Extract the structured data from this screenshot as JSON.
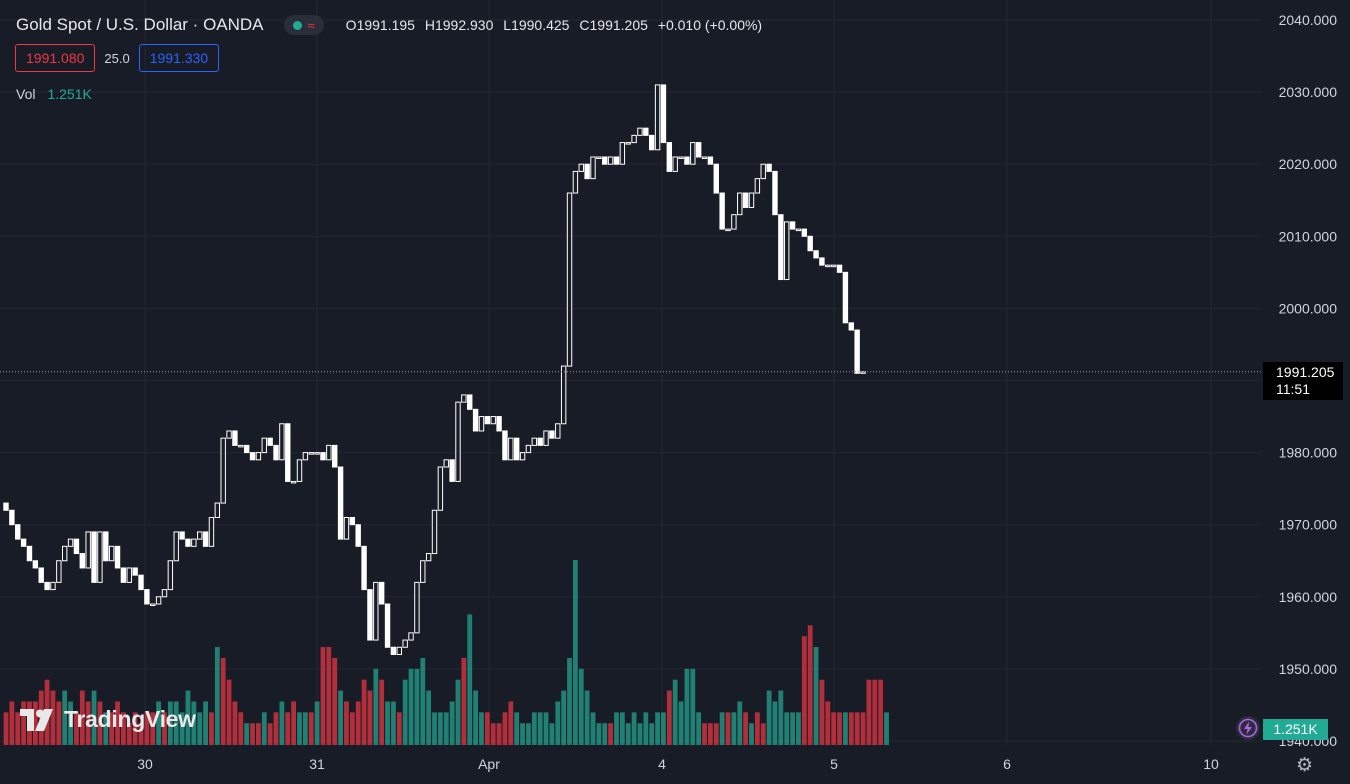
{
  "header": {
    "title": "Gold Spot / U.S. Dollar · OANDA",
    "status_icon": "market-open-dot-icon",
    "wave_icon": "wave-icon",
    "ohlc": {
      "o_label": "O",
      "o": "1991.195",
      "h_label": "H",
      "h": "1992.930",
      "l_label": "L",
      "l": "1990.425",
      "c_label": "C",
      "c": "1991.205",
      "change": "+0.010 (+0.00%)"
    }
  },
  "quote": {
    "bid": "1991.080",
    "spread": "25.0",
    "ask": "1991.330"
  },
  "volume_legend": {
    "label": "Vol",
    "value": "1.251K"
  },
  "last_price_label": {
    "price": "1991.205",
    "countdown": "11:51"
  },
  "volume_label": "1.251K",
  "logo": {
    "text": "TradingView",
    "icon": "tradingview-logo-icon"
  },
  "icons": {
    "lightning": "lightning-icon",
    "settings": "gear-icon"
  },
  "colors": {
    "background": "#181c27",
    "grid": "#242733",
    "candle": "#ffffff",
    "volume_up": "#22ab94",
    "volume_down": "#f23645"
  },
  "chart_data": {
    "type": "candlestick",
    "y_axis": {
      "min": 1940,
      "max": 2040,
      "ticks": [
        "2040.000",
        "2030.000",
        "2020.000",
        "2010.000",
        "2000.000",
        "1990.000",
        "1980.000",
        "1970.000",
        "1960.000",
        "1950.000",
        "1940.000"
      ]
    },
    "x_ticks": [
      "30",
      "31",
      "Apr",
      "4",
      "5",
      "6",
      "10"
    ],
    "last_price": 1991.205,
    "candles": [
      [
        1973,
        1972
      ],
      [
        1972,
        1970
      ],
      [
        1970,
        1968
      ],
      [
        1968,
        1967
      ],
      [
        1967,
        1965
      ],
      [
        1965,
        1964
      ],
      [
        1964,
        1962
      ],
      [
        1962,
        1961
      ],
      [
        1961,
        1962
      ],
      [
        1962,
        1965
      ],
      [
        1965,
        1967
      ],
      [
        1967,
        1968
      ],
      [
        1968,
        1966
      ],
      [
        1966,
        1964
      ],
      [
        1964,
        1969
      ],
      [
        1969,
        1962
      ],
      [
        1962,
        1969
      ],
      [
        1969,
        1965
      ],
      [
        1965,
        1967
      ],
      [
        1967,
        1964
      ],
      [
        1964,
        1962
      ],
      [
        1962,
        1964
      ],
      [
        1964,
        1963
      ],
      [
        1963,
        1961
      ],
      [
        1961,
        1959
      ],
      [
        1959,
        1959
      ],
      [
        1959,
        1960
      ],
      [
        1960,
        1961
      ],
      [
        1961,
        1965
      ],
      [
        1965,
        1969
      ],
      [
        1969,
        1968
      ],
      [
        1968,
        1967
      ],
      [
        1967,
        1968
      ],
      [
        1968,
        1969
      ],
      [
        1969,
        1967
      ],
      [
        1967,
        1971
      ],
      [
        1971,
        1973
      ],
      [
        1973,
        1982
      ],
      [
        1982,
        1983
      ],
      [
        1983,
        1981
      ],
      [
        1981,
        1981
      ],
      [
        1981,
        1980
      ],
      [
        1980,
        1979
      ],
      [
        1979,
        1980
      ],
      [
        1980,
        1982
      ],
      [
        1982,
        1981
      ],
      [
        1981,
        1979
      ],
      [
        1979,
        1984
      ],
      [
        1984,
        1976
      ],
      [
        1976,
        1976
      ],
      [
        1976,
        1979
      ],
      [
        1979,
        1980
      ],
      [
        1980,
        1980
      ],
      [
        1980,
        1980
      ],
      [
        1980,
        1979
      ],
      [
        1979,
        1981
      ],
      [
        1981,
        1978
      ],
      [
        1978,
        1968
      ],
      [
        1968,
        1971
      ],
      [
        1971,
        1970
      ],
      [
        1970,
        1967
      ],
      [
        1967,
        1961
      ],
      [
        1961,
        1954
      ],
      [
        1954,
        1962
      ],
      [
        1962,
        1959
      ],
      [
        1959,
        1953
      ],
      [
        1953,
        1952
      ],
      [
        1952,
        1953
      ],
      [
        1953,
        1954
      ],
      [
        1954,
        1955
      ],
      [
        1955,
        1962
      ],
      [
        1962,
        1965
      ],
      [
        1965,
        1966
      ],
      [
        1966,
        1972
      ],
      [
        1972,
        1978
      ],
      [
        1978,
        1979
      ],
      [
        1979,
        1976
      ],
      [
        1976,
        1987
      ],
      [
        1987,
        1988
      ],
      [
        1988,
        1986
      ],
      [
        1986,
        1983
      ],
      [
        1983,
        1985
      ],
      [
        1985,
        1984
      ],
      [
        1984,
        1985
      ],
      [
        1985,
        1983
      ],
      [
        1983,
        1979
      ],
      [
        1979,
        1982
      ],
      [
        1982,
        1979
      ],
      [
        1979,
        1980
      ],
      [
        1980,
        1981
      ],
      [
        1981,
        1982
      ],
      [
        1982,
        1981
      ],
      [
        1981,
        1983
      ],
      [
        1983,
        1982
      ],
      [
        1982,
        1984
      ],
      [
        1984,
        1992
      ],
      [
        1992,
        2016
      ],
      [
        2016,
        2019
      ],
      [
        2019,
        2020
      ],
      [
        2020,
        2018
      ],
      [
        2018,
        2021
      ],
      [
        2021,
        2021
      ],
      [
        2021,
        2020
      ],
      [
        2020,
        2021
      ],
      [
        2021,
        2020
      ],
      [
        2020,
        2023
      ],
      [
        2023,
        2023
      ],
      [
        2023,
        2024
      ],
      [
        2024,
        2025
      ],
      [
        2025,
        2024
      ],
      [
        2024,
        2022
      ],
      [
        2022,
        2031
      ],
      [
        2031,
        2023
      ],
      [
        2023,
        2019
      ],
      [
        2019,
        2021
      ],
      [
        2021,
        2021
      ],
      [
        2021,
        2020
      ],
      [
        2020,
        2023
      ],
      [
        2023,
        2021
      ],
      [
        2021,
        2021
      ],
      [
        2021,
        2020
      ],
      [
        2020,
        2016
      ],
      [
        2016,
        2011
      ],
      [
        2011,
        2011
      ],
      [
        2011,
        2013
      ],
      [
        2013,
        2016
      ],
      [
        2016,
        2014
      ],
      [
        2014,
        2016
      ],
      [
        2016,
        2018
      ],
      [
        2018,
        2020
      ],
      [
        2020,
        2019
      ],
      [
        2019,
        2013
      ],
      [
        2013,
        2004
      ],
      [
        2004,
        2012
      ],
      [
        2012,
        2011
      ],
      [
        2011,
        2011
      ],
      [
        2011,
        2010
      ],
      [
        2010,
        2008
      ],
      [
        2008,
        2007
      ],
      [
        2007,
        2006
      ],
      [
        2006,
        2006
      ],
      [
        2006,
        2006
      ],
      [
        2006,
        2005
      ],
      [
        2005,
        1998
      ],
      [
        1998,
        1997
      ],
      [
        1997,
        1991
      ],
      [
        1991,
        1991.205
      ]
    ],
    "volumes": [
      [
        3,
        0
      ],
      [
        4,
        0
      ],
      [
        3,
        0
      ],
      [
        4,
        0
      ],
      [
        4,
        0
      ],
      [
        4,
        0
      ],
      [
        5,
        0
      ],
      [
        6,
        0
      ],
      [
        5,
        0
      ],
      [
        4,
        0
      ],
      [
        5,
        1
      ],
      [
        4,
        1
      ],
      [
        3,
        0
      ],
      [
        5,
        0
      ],
      [
        4,
        0
      ],
      [
        5,
        1
      ],
      [
        4,
        0
      ],
      [
        3,
        1
      ],
      [
        3,
        0
      ],
      [
        4,
        0
      ],
      [
        3,
        0
      ],
      [
        2,
        0
      ],
      [
        3,
        0
      ],
      [
        2,
        0
      ],
      [
        3,
        0
      ],
      [
        3,
        0
      ],
      [
        4,
        1
      ],
      [
        3,
        0
      ],
      [
        4,
        1
      ],
      [
        4,
        1
      ],
      [
        3,
        1
      ],
      [
        5,
        1
      ],
      [
        4,
        1
      ],
      [
        3,
        1
      ],
      [
        4,
        1
      ],
      [
        3,
        0
      ],
      [
        9,
        1
      ],
      [
        8,
        0
      ],
      [
        6,
        0
      ],
      [
        4,
        0
      ],
      [
        3,
        0
      ],
      [
        2,
        1
      ],
      [
        2,
        0
      ],
      [
        2,
        0
      ],
      [
        3,
        1
      ],
      [
        2,
        0
      ],
      [
        3,
        0
      ],
      [
        4,
        1
      ],
      [
        3,
        0
      ],
      [
        4,
        0
      ],
      [
        3,
        1
      ],
      [
        3,
        1
      ],
      [
        3,
        0
      ],
      [
        4,
        1
      ],
      [
        9,
        0
      ],
      [
        9,
        0
      ],
      [
        8,
        0
      ],
      [
        5,
        1
      ],
      [
        4,
        0
      ],
      [
        3,
        0
      ],
      [
        4,
        0
      ],
      [
        6,
        0
      ],
      [
        5,
        0
      ],
      [
        7,
        1
      ],
      [
        6,
        0
      ],
      [
        4,
        1
      ],
      [
        4,
        1
      ],
      [
        3,
        0
      ],
      [
        6,
        1
      ],
      [
        7,
        1
      ],
      [
        7,
        1
      ],
      [
        8,
        1
      ],
      [
        5,
        1
      ],
      [
        3,
        1
      ],
      [
        3,
        1
      ],
      [
        3,
        1
      ],
      [
        4,
        1
      ],
      [
        6,
        1
      ],
      [
        8,
        0
      ],
      [
        12,
        1
      ],
      [
        5,
        1
      ],
      [
        3,
        1
      ],
      [
        3,
        0
      ],
      [
        2,
        0
      ],
      [
        2,
        0
      ],
      [
        3,
        0
      ],
      [
        4,
        0
      ],
      [
        3,
        1
      ],
      [
        2,
        1
      ],
      [
        2,
        1
      ],
      [
        3,
        1
      ],
      [
        3,
        1
      ],
      [
        3,
        1
      ],
      [
        2,
        1
      ],
      [
        4,
        1
      ],
      [
        5,
        1
      ],
      [
        8,
        1
      ],
      [
        17,
        1
      ],
      [
        7,
        1
      ],
      [
        5,
        1
      ],
      [
        3,
        1
      ],
      [
        2,
        1
      ],
      [
        2,
        1
      ],
      [
        2,
        0
      ],
      [
        3,
        1
      ],
      [
        3,
        1
      ],
      [
        2,
        1
      ],
      [
        3,
        1
      ],
      [
        2,
        1
      ],
      [
        3,
        1
      ],
      [
        2,
        1
      ],
      [
        3,
        1
      ],
      [
        3,
        1
      ],
      [
        5,
        0
      ],
      [
        6,
        1
      ],
      [
        4,
        1
      ],
      [
        7,
        1
      ],
      [
        7,
        1
      ],
      [
        3,
        1
      ],
      [
        2,
        0
      ],
      [
        2,
        0
      ],
      [
        2,
        0
      ],
      [
        3,
        1
      ],
      [
        3,
        0
      ],
      [
        3,
        1
      ],
      [
        4,
        1
      ],
      [
        3,
        0
      ],
      [
        2,
        1
      ],
      [
        3,
        0
      ],
      [
        2,
        0
      ],
      [
        5,
        1
      ],
      [
        4,
        1
      ],
      [
        5,
        1
      ],
      [
        3,
        1
      ],
      [
        3,
        1
      ],
      [
        3,
        1
      ],
      [
        10,
        0
      ],
      [
        11,
        0
      ],
      [
        9,
        1
      ],
      [
        6,
        0
      ],
      [
        4,
        0
      ],
      [
        3,
        0
      ],
      [
        3,
        0
      ],
      [
        3,
        1
      ],
      [
        3,
        0
      ],
      [
        3,
        0
      ],
      [
        3,
        0
      ],
      [
        6,
        0
      ],
      [
        6,
        0
      ],
      [
        6,
        0
      ],
      [
        3,
        1
      ]
    ]
  }
}
